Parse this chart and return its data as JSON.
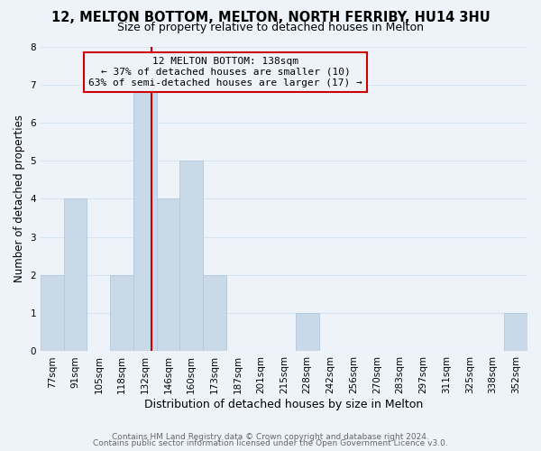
{
  "title": "12, MELTON BOTTOM, MELTON, NORTH FERRIBY, HU14 3HU",
  "subtitle": "Size of property relative to detached houses in Melton",
  "xlabel": "Distribution of detached houses by size in Melton",
  "ylabel": "Number of detached properties",
  "bar_color": "#c9d9e8",
  "bar_edge_color": "#b0c8de",
  "annotation_line_color": "#cc0000",
  "annotation_box_edge": "#cc0000",
  "annotation_line1": "12 MELTON BOTTOM: 138sqm",
  "annotation_line2": "← 37% of detached houses are smaller (10)",
  "annotation_line3": "63% of semi-detached houses are larger (17) →",
  "annotation_fontsize": 8.0,
  "footer_line1": "Contains HM Land Registry data © Crown copyright and database right 2024.",
  "footer_line2": "Contains public sector information licensed under the Open Government Licence v3.0.",
  "categories": [
    "77sqm",
    "91sqm",
    "105sqm",
    "118sqm",
    "132sqm",
    "146sqm",
    "160sqm",
    "173sqm",
    "187sqm",
    "201sqm",
    "215sqm",
    "228sqm",
    "242sqm",
    "256sqm",
    "270sqm",
    "283sqm",
    "297sqm",
    "311sqm",
    "325sqm",
    "338sqm",
    "352sqm"
  ],
  "values": [
    2,
    4,
    0,
    2,
    7,
    4,
    5,
    2,
    0,
    0,
    0,
    1,
    0,
    0,
    0,
    0,
    0,
    0,
    0,
    0,
    1
  ],
  "property_bin_index": 4,
  "red_line_x": 4.3,
  "ylim": [
    0,
    8
  ],
  "yticks": [
    0,
    1,
    2,
    3,
    4,
    5,
    6,
    7,
    8
  ],
  "grid_color": "#d8e4f0",
  "background_color": "#eef3fa",
  "title_fontsize": 10.5,
  "subtitle_fontsize": 9.0,
  "xlabel_fontsize": 9.0,
  "ylabel_fontsize": 8.5,
  "tick_fontsize": 7.5,
  "footer_fontsize": 6.5
}
